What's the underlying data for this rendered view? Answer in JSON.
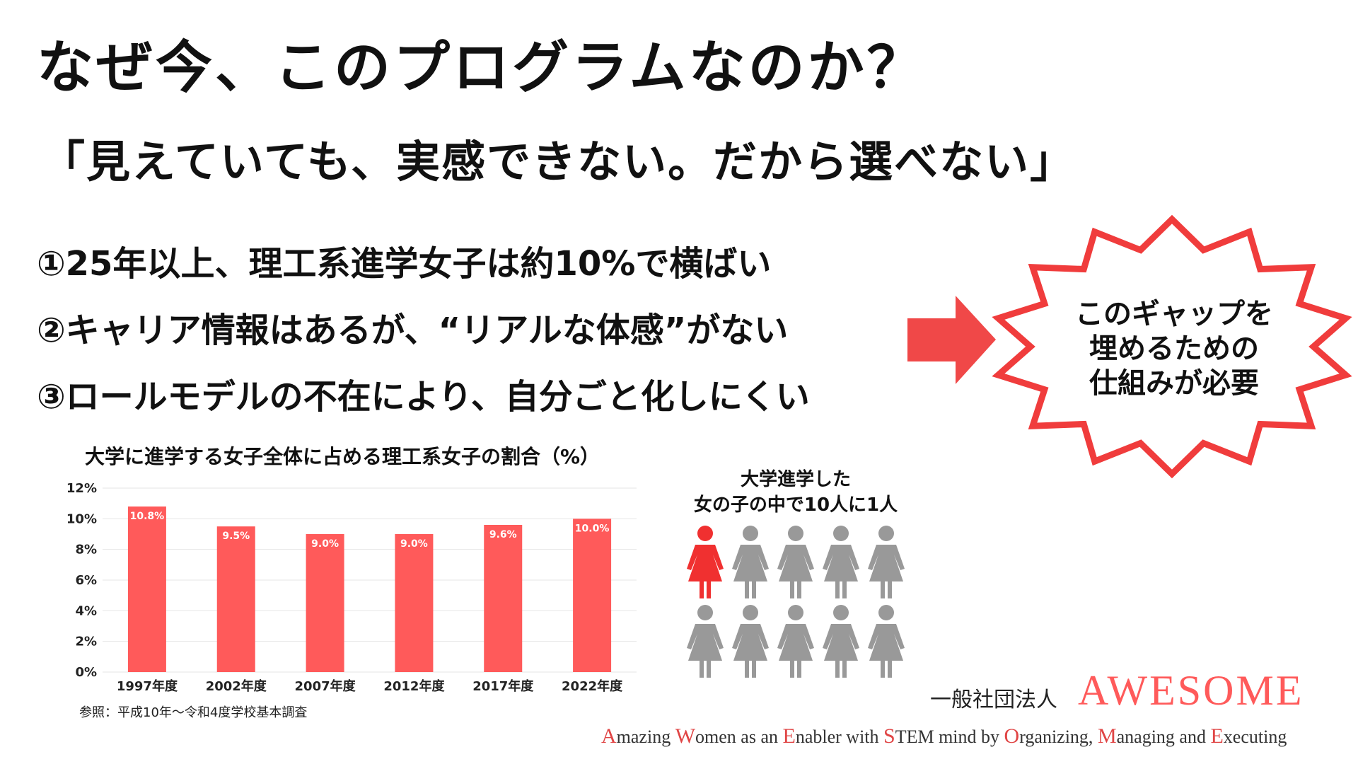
{
  "title": "なぜ今、このプログラムなのか？",
  "subtitle": "「見えていても、実感できない。だから選べない」",
  "points": [
    "①25年以上、理工系進学女子は約10%で横ばい",
    "②キャリア情報はあるが、“リアルな体感”がない",
    "③ロールモデルの不在により、自分ごと化しにくい"
  ],
  "callout": {
    "lines": [
      "このギャップを",
      "埋めるための",
      "仕組みが必要"
    ]
  },
  "colors": {
    "accent": "#f04848",
    "bar": "#ff5a5a",
    "person_highlight": "#f03030",
    "person_default": "#999999"
  },
  "chart_data": {
    "type": "bar",
    "title": "大学に進学する女子全体に占める理工系女子の割合（%）",
    "categories": [
      "1997年度",
      "2002年度",
      "2007年度",
      "2012年度",
      "2017年度",
      "2022年度"
    ],
    "values": [
      10.8,
      9.5,
      9.0,
      9.0,
      9.6,
      10.0
    ],
    "data_labels": [
      "10.8%",
      "9.5%",
      "9.0%",
      "9.0%",
      "9.6%",
      "10.0%"
    ],
    "yticks": [
      "0%",
      "2%",
      "4%",
      "6%",
      "8%",
      "10%",
      "12%"
    ],
    "ylim": [
      0,
      12
    ],
    "grid": true,
    "source": "参照：平成10年〜令和4度学校基本調査"
  },
  "people": {
    "caption_lines": [
      "大学進学した",
      "女の子の中で10人に1人"
    ],
    "total": 10,
    "highlighted": 1
  },
  "brand": {
    "prefix": "一般社団法人",
    "name": "AWESOME",
    "tagline_parts": [
      {
        "text": "A",
        "hl": true
      },
      {
        "text": "mazing ",
        "hl": false
      },
      {
        "text": "W",
        "hl": true
      },
      {
        "text": "omen as an ",
        "hl": false
      },
      {
        "text": "E",
        "hl": true
      },
      {
        "text": "nabler with ",
        "hl": false
      },
      {
        "text": "S",
        "hl": true
      },
      {
        "text": "TEM mind by ",
        "hl": false
      },
      {
        "text": "O",
        "hl": true
      },
      {
        "text": "rganizing, ",
        "hl": false
      },
      {
        "text": "M",
        "hl": true
      },
      {
        "text": "anaging and ",
        "hl": false
      },
      {
        "text": "E",
        "hl": true
      },
      {
        "text": "xecuting",
        "hl": false
      }
    ]
  }
}
